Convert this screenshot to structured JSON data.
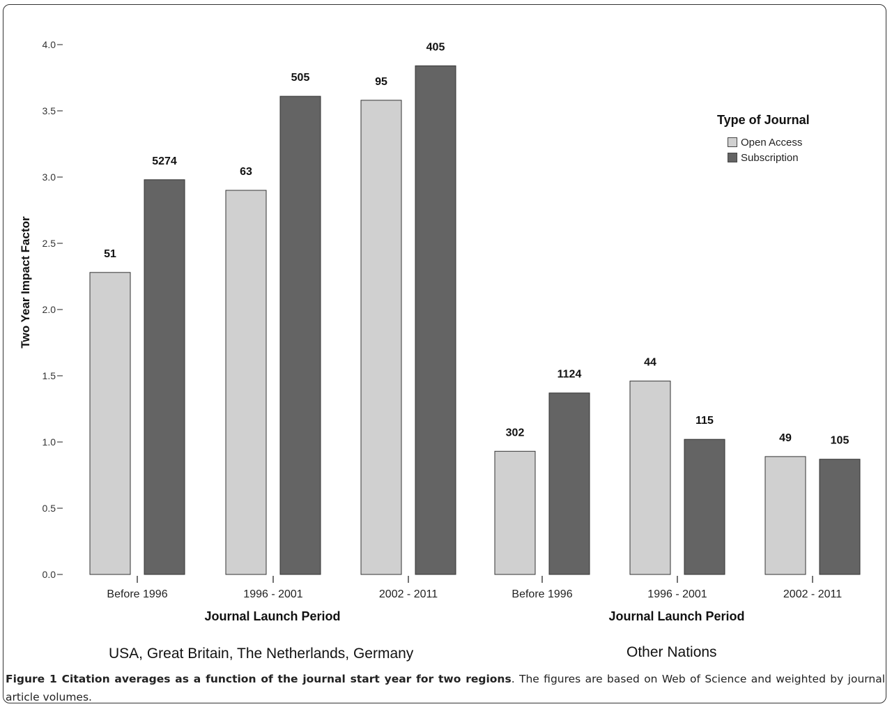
{
  "figure": {
    "caption_bold": "Figure 1 Citation averages as a function of the journal start year for two regions",
    "caption_rest": ". The figures are based on Web of Science and weighted by journal article volumes."
  },
  "chart_data": {
    "type": "bar",
    "ylabel": "Two Year Impact Factor",
    "ylim": [
      0,
      4.0
    ],
    "yticks": [
      "0.0",
      "0.5",
      "1.0",
      "1.5",
      "2.0",
      "2.5",
      "3.0",
      "3.5",
      "4.0"
    ],
    "legend": {
      "title": "Type of Journal",
      "position": "top-right",
      "entries": [
        "Open Access",
        "Subscription"
      ]
    },
    "colors": {
      "Open Access": "#d0d0d0",
      "Subscription": "#646464"
    },
    "panels": [
      {
        "region": "USA, Great Britain, The Netherlands, Germany",
        "xlabel": "Journal Launch Period",
        "categories": [
          "Before 1996",
          "1996 - 2001",
          "2002 - 2011"
        ],
        "series": [
          {
            "name": "Open Access",
            "values": [
              2.28,
              2.9,
              3.58
            ],
            "labels": [
              "51",
              "63",
              "95"
            ]
          },
          {
            "name": "Subscription",
            "values": [
              2.98,
              3.61,
              3.84
            ],
            "labels": [
              "5274",
              "505",
              "405"
            ]
          }
        ]
      },
      {
        "region": "Other Nations",
        "xlabel": "Journal Launch Period",
        "categories": [
          "Before 1996",
          "1996 - 2001",
          "2002 - 2011"
        ],
        "series": [
          {
            "name": "Open Access",
            "values": [
              0.93,
              1.46,
              0.89
            ],
            "labels": [
              "302",
              "44",
              "49"
            ]
          },
          {
            "name": "Subscription",
            "values": [
              1.37,
              1.02,
              0.87
            ],
            "labels": [
              "1124",
              "115",
              "105"
            ]
          }
        ]
      }
    ]
  }
}
